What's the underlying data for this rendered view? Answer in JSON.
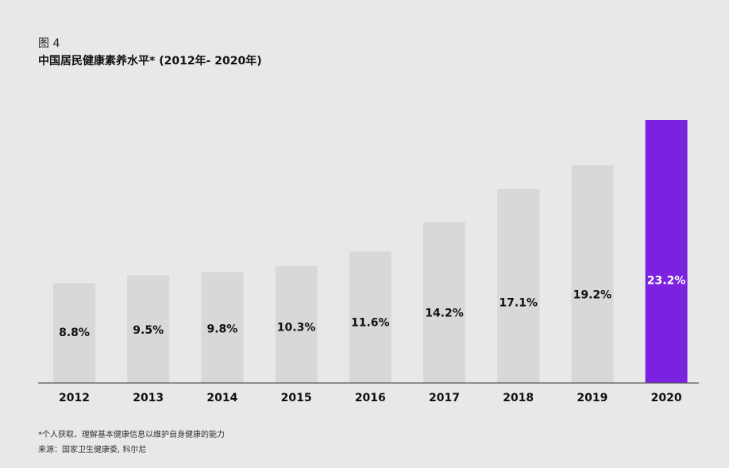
{
  "figure": {
    "label": "图 4",
    "title": "中国居民健康素养水平* (2012年- 2020年)"
  },
  "footnotes": {
    "definition": "*个人获取、理解基本健康信息以维护自身健康的能力",
    "source": "来源：国家卫生健康委, 科尔尼"
  },
  "colors": {
    "bar": "#d8d8d8",
    "highlight": "#7b22e0",
    "axis": "#555555",
    "label_dark": "#111111",
    "label_light": "#ffffff"
  },
  "chart_data": {
    "type": "bar",
    "title": "中国居民健康素养水平* (2012年- 2020年)",
    "xlabel": "",
    "ylabel": "",
    "categories": [
      "2012",
      "2013",
      "2014",
      "2015",
      "2016",
      "2017",
      "2018",
      "2019",
      "2020"
    ],
    "values": [
      8.8,
      9.5,
      9.8,
      10.3,
      11.6,
      14.2,
      17.1,
      19.2,
      23.2
    ],
    "value_labels": [
      "8.8%",
      "9.5%",
      "9.8%",
      "10.3%",
      "11.6%",
      "14.2%",
      "17.1%",
      "19.2%",
      "23.2%"
    ],
    "highlight_category": "2020",
    "ylim": [
      0,
      23.2
    ],
    "grid": false,
    "legend": "none"
  }
}
